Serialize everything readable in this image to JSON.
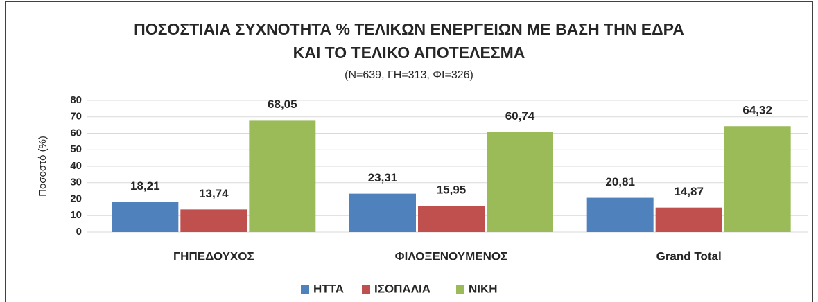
{
  "chart_data": {
    "type": "bar",
    "title": [
      "ΠΟΣΟΣΤΙΑΙΑ ΣΥΧΝΟΤΗΤΑ % ΤΕΛΙΚΩΝ ΕΝΕΡΓΕΙΩΝ ΜΕ ΒΑΣΗ ΤΗΝ ΕΔΡΑ",
      "ΚΑΙ ΤΟ ΤΕΛΙΚΟ ΑΠΟΤΕΛΕΣΜΑ"
    ],
    "subtitle": "(Ν=639, ΓΗ=313, ΦΙ=326)",
    "y_label": "Ποσοστό (%)",
    "categories": [
      "ΓΗΠΕΔΟΥΧΟΣ",
      "ΦΙΛΟΞΕΝΟΥΜΕΝΟΣ",
      "Grand Total"
    ],
    "series": [
      {
        "name": "ΗΤΤΑ",
        "color": "#4f81bd",
        "values": [
          18.21,
          23.31,
          20.81
        ],
        "value_labels": [
          "18,21",
          "23,31",
          "20,81"
        ]
      },
      {
        "name": "ΙΣΟΠΑΛΙΑ",
        "color": "#c0504d",
        "values": [
          13.74,
          15.95,
          14.87
        ],
        "value_labels": [
          "13,74",
          "15,95",
          "14,87"
        ]
      },
      {
        "name": "ΝΙΚΗ",
        "color": "#9bbb59",
        "values": [
          68.05,
          60.74,
          64.32
        ],
        "value_labels": [
          "68,05",
          "60,74",
          "64,32"
        ]
      }
    ],
    "ylim": [
      0,
      80
    ],
    "yticks": [
      0,
      10,
      20,
      30,
      40,
      50,
      60,
      70,
      80
    ],
    "grid": true,
    "legend": "bottom"
  }
}
